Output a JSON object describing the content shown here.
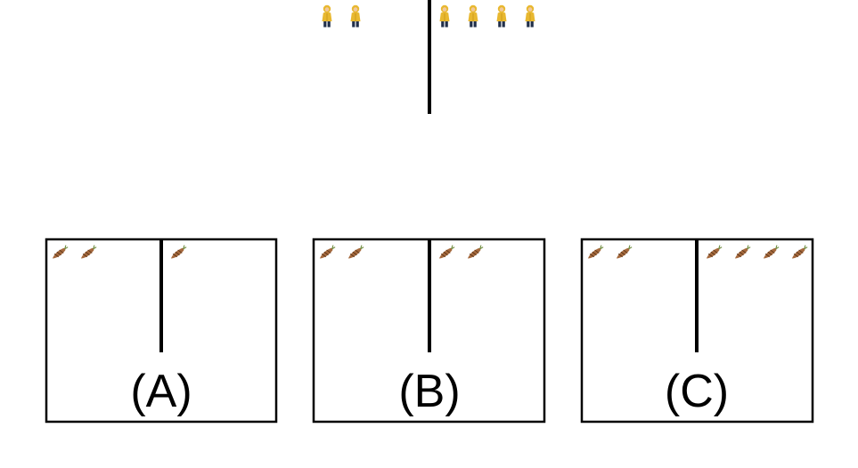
{
  "colors": {
    "background": "#ffffff",
    "line": "#000000",
    "person_body": "#e8b830",
    "person_legs": "#22304a",
    "person_skin": "#f2c89a",
    "carrot_body": "#a66a3e",
    "carrot_stripe": "#5a3418",
    "carrot_top": "#6c8a3c"
  },
  "icons": {
    "top": "person-icon",
    "options": "carrot-icon"
  },
  "top_figure": {
    "left_count": 2,
    "right_count": 4
  },
  "options": [
    {
      "label": "(A)",
      "left_count": 2,
      "right_count": 1
    },
    {
      "label": "(B)",
      "left_count": 2,
      "right_count": 2
    },
    {
      "label": "(C)",
      "left_count": 2,
      "right_count": 4
    }
  ]
}
